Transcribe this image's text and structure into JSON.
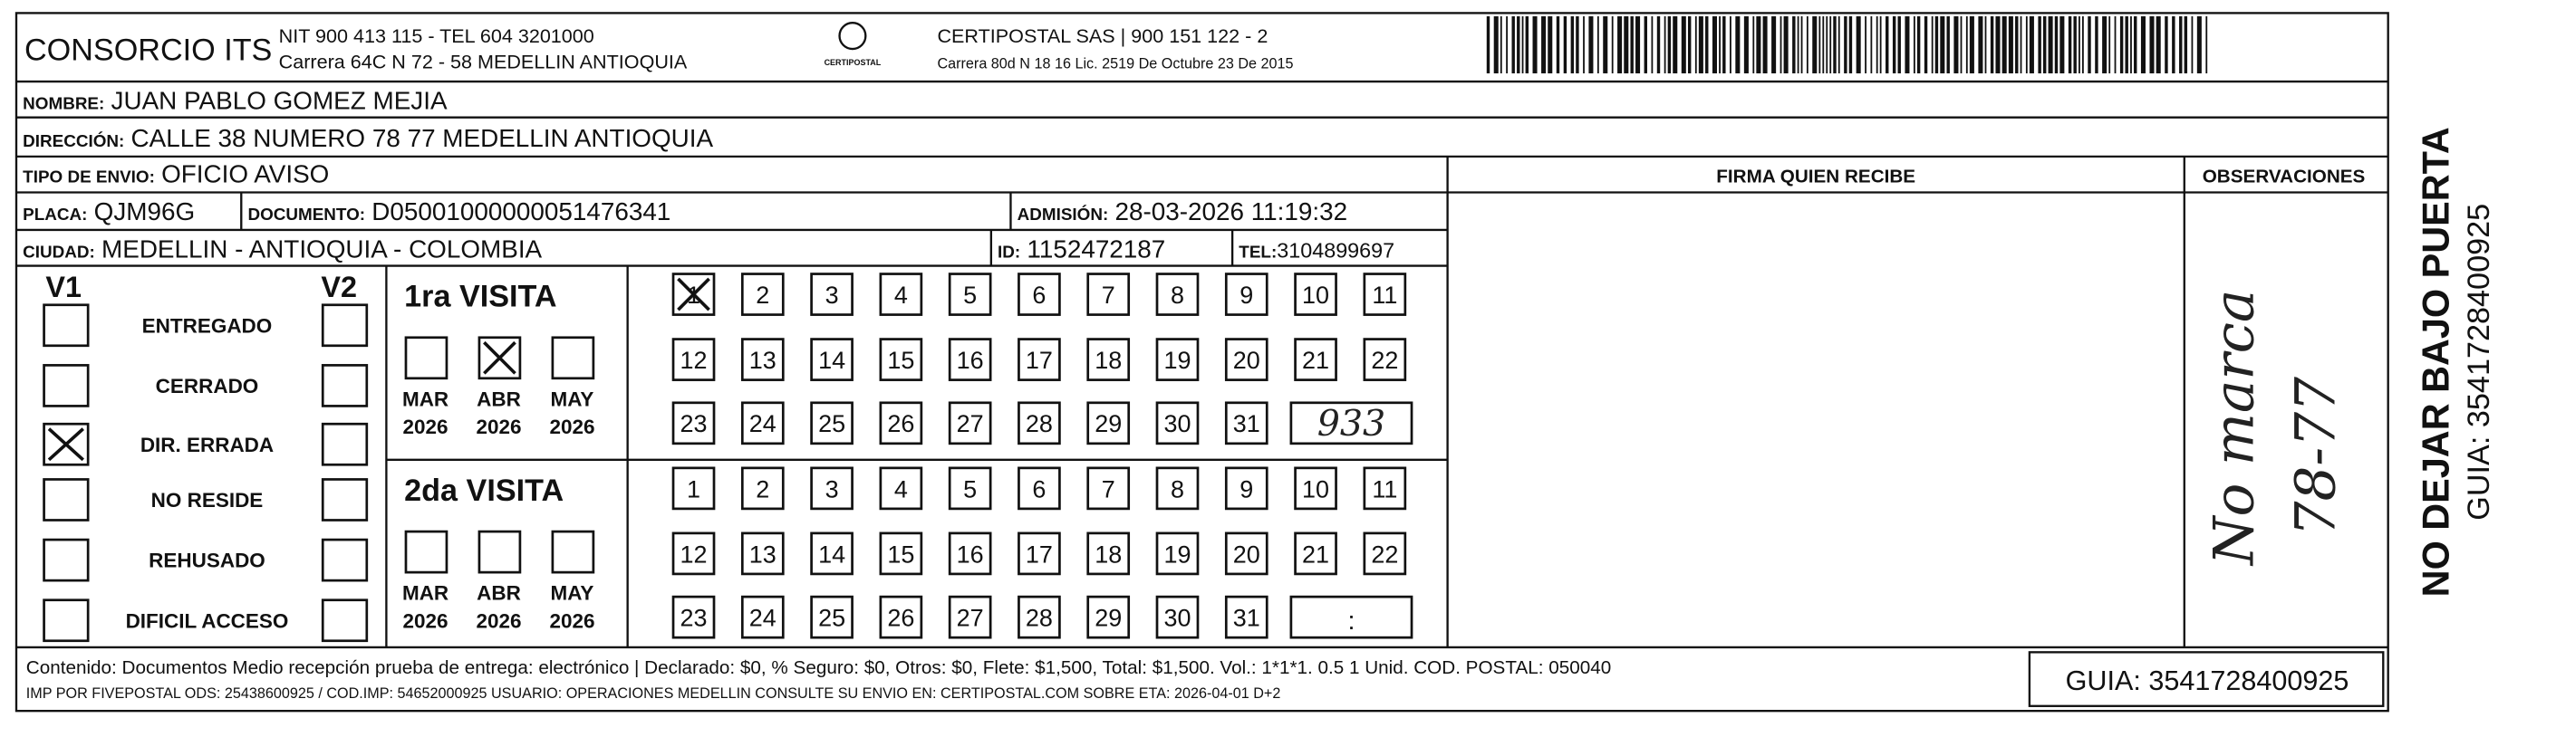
{
  "header": {
    "company": "CONSORCIO ITS",
    "nit": "NIT 900 413 115 - TEL 604 3201000",
    "address": "Carrera 64C N 72 - 58 MEDELLIN ANTIOQUIA",
    "logo_text": "CERTIPOSTAL",
    "carrier": "CERTIPOSTAL SAS | 900 151 122 - 2",
    "carrier_address": "Carrera 80d N 18 16  Lic. 2519 De Octubre 23 De 2015"
  },
  "fields": [
    {
      "label": "NOMBRE:",
      "value": "JUAN PABLO GOMEZ MEJIA"
    },
    {
      "label": "DIRECCIÓN:",
      "value": "CALLE 38 NUMERO 78 77 MEDELLIN ANTIOQUIA"
    },
    {
      "label": "TIPO DE ENVIO:",
      "value": "OFICIO AVISO"
    },
    {
      "label": "PLACA:",
      "value": "QJM96G"
    },
    {
      "label": "DOCUMENTO:",
      "value": "D05001000000051476341"
    },
    {
      "label": "ADMISIÓN:",
      "value": "28-03-2026 11:19:32"
    },
    {
      "label": "CIUDAD:",
      "value": "MEDELLIN - ANTIOQUIA - COLOMBIA"
    },
    {
      "label": "ID:",
      "value": "1152472187"
    },
    {
      "label": "TEL:",
      "value": "3104899697"
    }
  ],
  "columns": [
    "FIRMA QUIEN RECIBE",
    "OBSERVACIONES"
  ],
  "status_headers": [
    "V1",
    "V2"
  ],
  "statuses": [
    {
      "label": "ENTREGADO",
      "v1_checked": false,
      "v2_checked": false
    },
    {
      "label": "CERRADO",
      "v1_checked": false,
      "v2_checked": false
    },
    {
      "label": "DIR. ERRADA",
      "v1_checked": true,
      "v2_checked": false
    },
    {
      "label": "NO RESIDE",
      "v1_checked": false,
      "v2_checked": false
    },
    {
      "label": "REHUSADO",
      "v1_checked": false,
      "v2_checked": false
    },
    {
      "label": "DIFICIL ACCESO",
      "v1_checked": false,
      "v2_checked": false
    }
  ],
  "visits": [
    {
      "title": "1ra VISITA",
      "months": [
        {
          "month": "MAR",
          "year": "2026",
          "checked": false
        },
        {
          "month": "ABR",
          "year": "2026",
          "checked": true
        },
        {
          "month": "MAY",
          "year": "2026",
          "checked": false
        }
      ],
      "days": [
        1,
        2,
        3,
        4,
        5,
        6,
        7,
        8,
        9,
        10,
        11,
        12,
        13,
        14,
        15,
        16,
        17,
        18,
        19,
        20,
        21,
        22,
        23,
        24,
        25,
        26,
        27,
        28,
        29,
        30,
        31
      ],
      "checked_days": [
        1
      ],
      "time": "933"
    },
    {
      "title": "2da VISITA",
      "months": [
        {
          "month": "MAR",
          "year": "2026",
          "checked": false
        },
        {
          "month": "ABR",
          "year": "2026",
          "checked": false
        },
        {
          "month": "MAY",
          "year": "2026",
          "checked": false
        }
      ],
      "days": [
        1,
        2,
        3,
        4,
        5,
        6,
        7,
        8,
        9,
        10,
        11,
        12,
        13,
        14,
        15,
        16,
        17,
        18,
        19,
        20,
        21,
        22,
        23,
        24,
        25,
        26,
        27,
        28,
        29,
        30,
        31
      ],
      "checked_days": [],
      "time": ":"
    }
  ],
  "observations": [
    "No marca",
    "78-77"
  ],
  "footer": {
    "contents": "Contenido: Documentos Medio recepción prueba de entrega: electrónico | Declarado: $0, % Seguro: $0, Otros: $0, Flete: $1,500, Total: $1,500. Vol.: 1*1*1. 0.5  1 Unid. COD. POSTAL: 050040",
    "imp": "IMP POR FIVEPOSTAL ODS: 25438600925 / COD.IMP: 54652000925 USUARIO: OPERACIONES MEDELLIN CONSULTE SU ENVIO EN: CERTIPOSTAL.COM SOBRE ETA: 2026-04-01 D+2",
    "guia": "GUIA: 3541728400925"
  },
  "side": {
    "warning": "NO DEJAR BAJO PUERTA",
    "guia": "GUIA: 3541728400925"
  }
}
